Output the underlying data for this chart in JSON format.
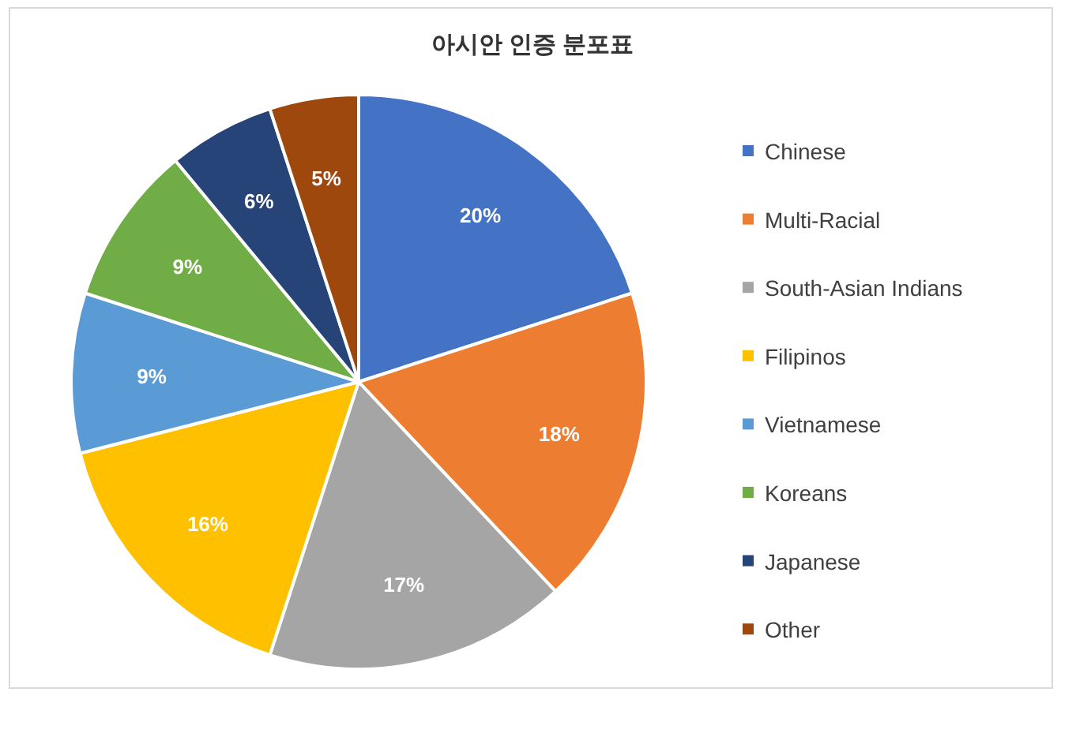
{
  "chart_data": {
    "type": "pie",
    "title": "아시안 인증 분포표",
    "categories": [
      "Chinese",
      "Multi-Racial",
      "South-Asian Indians",
      "Filipinos",
      "Vietnamese",
      "Koreans",
      "Japanese",
      "Other"
    ],
    "values": [
      20,
      18,
      17,
      16,
      9,
      9,
      6,
      5
    ],
    "colors": [
      "#4472c4",
      "#ed7d31",
      "#a5a5a5",
      "#ffc000",
      "#5b9bd5",
      "#70ad47",
      "#264478",
      "#9e480e"
    ],
    "value_labels": [
      "20%",
      "18%",
      "17%",
      "16%",
      "9%",
      "9%",
      "6%",
      "5%"
    ],
    "legend": "right"
  }
}
